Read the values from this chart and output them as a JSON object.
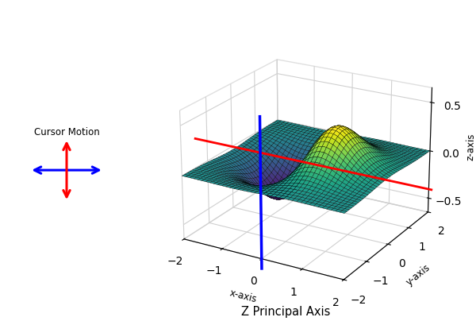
{
  "title": "Z Principal Axis",
  "xlabel": "x-axis",
  "ylabel": "y-axis",
  "zlabel": "z-axis",
  "xlim": [
    -2,
    2
  ],
  "ylim": [
    -2,
    2
  ],
  "zlim": [
    -0.65,
    0.65
  ],
  "zticks": [
    -0.5,
    0,
    0.5
  ],
  "surface_cmap": "viridis",
  "blue_line_color": "#0000FF",
  "red_line_color": "#FF0000",
  "blue_dot_color": "#1a1aFF",
  "cursor_motion_text": "Cursor Motion",
  "cursor_blue_color": "#0000FF",
  "cursor_red_color": "#FF0000",
  "elev": 22,
  "azim": -60
}
